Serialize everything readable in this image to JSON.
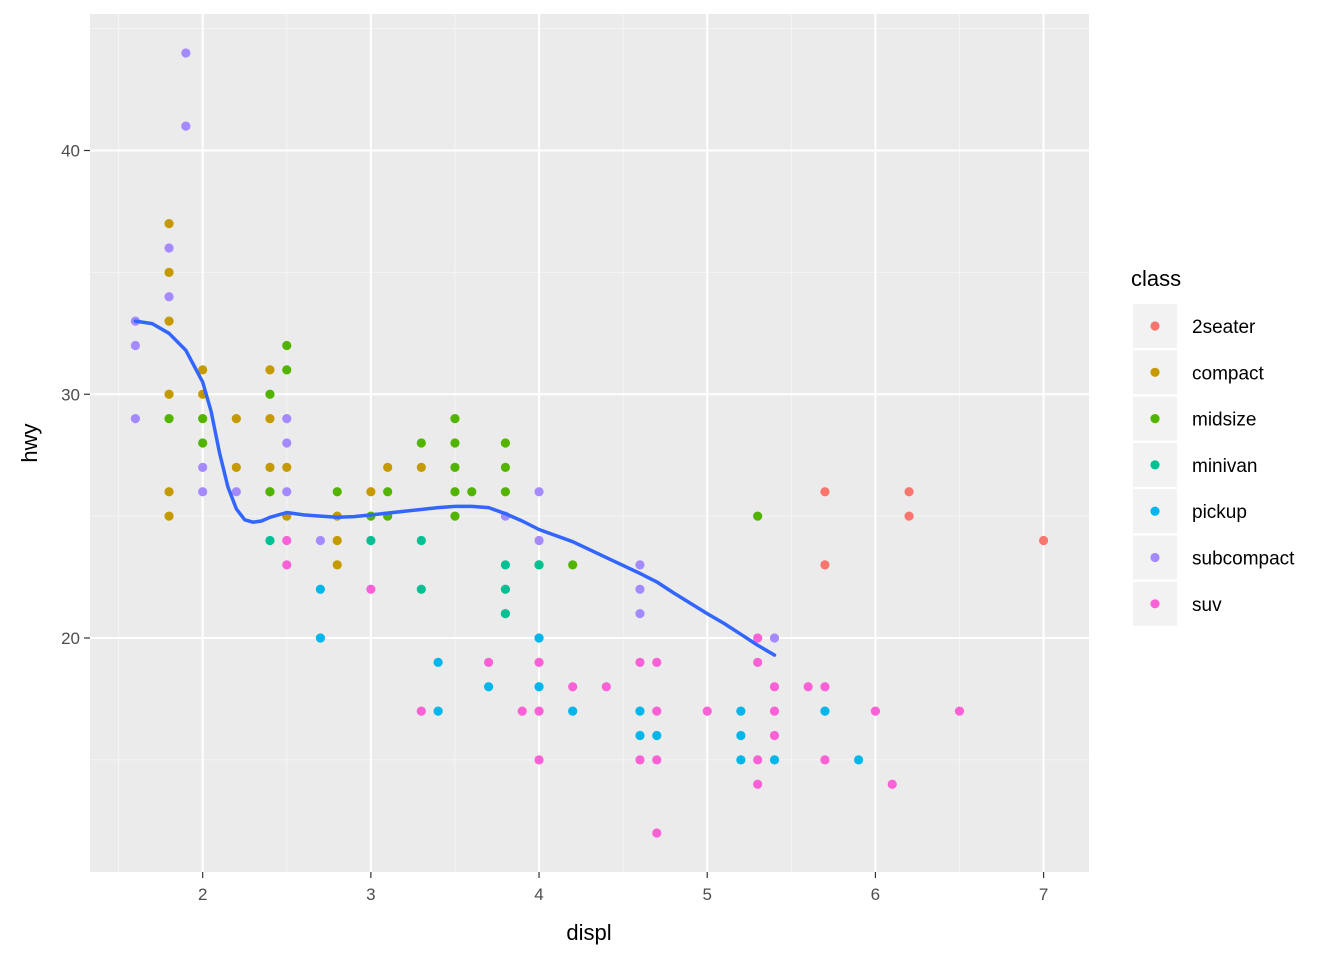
{
  "chart_data": {
    "type": "scatter",
    "xlabel": "displ",
    "ylabel": "hwy",
    "xlim": [
      1.33,
      7.27
    ],
    "ylim": [
      10.4,
      45.6
    ],
    "x_ticks": [
      2,
      3,
      4,
      5,
      6,
      7
    ],
    "x_tick_labels": [
      "2",
      "3",
      "4",
      "5",
      "6",
      "7"
    ],
    "y_ticks": [
      20,
      30,
      40
    ],
    "y_tick_labels": [
      "20",
      "30",
      "40"
    ],
    "grid": true,
    "legend_position": "right",
    "legend": {
      "title": "class",
      "entries": [
        {
          "name": "2seater",
          "color": "#F8766D"
        },
        {
          "name": "compact",
          "color": "#C49A00"
        },
        {
          "name": "midsize",
          "color": "#53B400"
        },
        {
          "name": "minivan",
          "color": "#00C094"
        },
        {
          "name": "pickup",
          "color": "#00B6EB"
        },
        {
          "name": "subcompact",
          "color": "#A58AFF"
        },
        {
          "name": "suv",
          "color": "#FB61D7"
        }
      ]
    },
    "series": [
      {
        "name": "2seater",
        "points": [
          [
            5.7,
            26
          ],
          [
            5.7,
            23
          ],
          [
            6.2,
            26
          ],
          [
            6.2,
            25
          ],
          [
            7.0,
            24
          ]
        ]
      },
      {
        "name": "compact",
        "points": [
          [
            1.8,
            37
          ],
          [
            1.8,
            35
          ],
          [
            1.8,
            33
          ],
          [
            1.8,
            30
          ],
          [
            1.8,
            26
          ],
          [
            1.8,
            25
          ],
          [
            2.0,
            31
          ],
          [
            2.0,
            30
          ],
          [
            2.2,
            29
          ],
          [
            2.2,
            27
          ],
          [
            2.4,
            31
          ],
          [
            2.4,
            29
          ],
          [
            2.4,
            27
          ],
          [
            2.4,
            26
          ],
          [
            2.5,
            27
          ],
          [
            2.5,
            25
          ],
          [
            2.8,
            25
          ],
          [
            2.8,
            24
          ],
          [
            2.8,
            23
          ],
          [
            3.0,
            26
          ],
          [
            3.1,
            27
          ],
          [
            3.3,
            27
          ]
        ]
      },
      {
        "name": "midsize",
        "points": [
          [
            1.8,
            29
          ],
          [
            2.0,
            29
          ],
          [
            2.0,
            28
          ],
          [
            2.4,
            30
          ],
          [
            2.4,
            26
          ],
          [
            2.5,
            32
          ],
          [
            2.5,
            31
          ],
          [
            2.8,
            26
          ],
          [
            3.0,
            25
          ],
          [
            3.1,
            26
          ],
          [
            3.1,
            25
          ],
          [
            3.3,
            28
          ],
          [
            3.5,
            29
          ],
          [
            3.5,
            28
          ],
          [
            3.5,
            27
          ],
          [
            3.5,
            26
          ],
          [
            3.5,
            25
          ],
          [
            3.6,
            26
          ],
          [
            3.8,
            28
          ],
          [
            3.8,
            27
          ],
          [
            3.8,
            26
          ],
          [
            4.0,
            23
          ],
          [
            4.2,
            23
          ],
          [
            5.3,
            25
          ]
        ]
      },
      {
        "name": "minivan",
        "points": [
          [
            2.4,
            24
          ],
          [
            3.0,
            24
          ],
          [
            3.3,
            24
          ],
          [
            3.3,
            22
          ],
          [
            3.8,
            23
          ],
          [
            3.8,
            22
          ],
          [
            3.8,
            21
          ],
          [
            4.0,
            23
          ]
        ]
      },
      {
        "name": "pickup",
        "points": [
          [
            2.7,
            22
          ],
          [
            2.7,
            20
          ],
          [
            3.4,
            19
          ],
          [
            3.4,
            17
          ],
          [
            3.7,
            18
          ],
          [
            4.0,
            20
          ],
          [
            4.0,
            18
          ],
          [
            4.2,
            17
          ],
          [
            4.6,
            17
          ],
          [
            4.6,
            16
          ],
          [
            4.7,
            16
          ],
          [
            5.2,
            17
          ],
          [
            5.2,
            16
          ],
          [
            5.2,
            15
          ],
          [
            5.4,
            15
          ],
          [
            5.7,
            17
          ],
          [
            5.9,
            15
          ]
        ]
      },
      {
        "name": "subcompact",
        "points": [
          [
            1.6,
            33
          ],
          [
            1.6,
            32
          ],
          [
            1.6,
            29
          ],
          [
            1.8,
            36
          ],
          [
            1.8,
            34
          ],
          [
            1.9,
            44
          ],
          [
            1.9,
            41
          ],
          [
            2.0,
            27
          ],
          [
            2.0,
            26
          ],
          [
            2.2,
            26
          ],
          [
            2.5,
            29
          ],
          [
            2.5,
            28
          ],
          [
            2.5,
            26
          ],
          [
            2.7,
            24
          ],
          [
            3.8,
            25
          ],
          [
            4.0,
            26
          ],
          [
            4.0,
            24
          ],
          [
            4.6,
            23
          ],
          [
            4.6,
            22
          ],
          [
            4.6,
            21
          ],
          [
            5.4,
            20
          ]
        ]
      },
      {
        "name": "suv",
        "points": [
          [
            2.5,
            24
          ],
          [
            2.5,
            23
          ],
          [
            3.0,
            22
          ],
          [
            3.3,
            17
          ],
          [
            3.7,
            19
          ],
          [
            3.9,
            17
          ],
          [
            4.0,
            19
          ],
          [
            4.0,
            17
          ],
          [
            4.0,
            15
          ],
          [
            4.2,
            18
          ],
          [
            4.4,
            18
          ],
          [
            4.6,
            19
          ],
          [
            4.6,
            15
          ],
          [
            4.7,
            19
          ],
          [
            4.7,
            17
          ],
          [
            4.7,
            15
          ],
          [
            4.7,
            12
          ],
          [
            5.0,
            17
          ],
          [
            5.3,
            20
          ],
          [
            5.3,
            19
          ],
          [
            5.3,
            15
          ],
          [
            5.3,
            14
          ],
          [
            5.4,
            18
          ],
          [
            5.4,
            17
          ],
          [
            5.4,
            16
          ],
          [
            5.6,
            18
          ],
          [
            5.7,
            18
          ],
          [
            5.7,
            15
          ],
          [
            6.0,
            17
          ],
          [
            6.1,
            14
          ],
          [
            6.5,
            17
          ]
        ]
      }
    ],
    "smooth": {
      "name": "loess",
      "color": "#3366FF",
      "points": [
        [
          1.6,
          33.0
        ],
        [
          1.7,
          32.9
        ],
        [
          1.8,
          32.5
        ],
        [
          1.9,
          31.8
        ],
        [
          2.0,
          30.5
        ],
        [
          2.05,
          29.3
        ],
        [
          2.1,
          27.6
        ],
        [
          2.15,
          26.2
        ],
        [
          2.2,
          25.3
        ],
        [
          2.25,
          24.85
        ],
        [
          2.3,
          24.75
        ],
        [
          2.35,
          24.8
        ],
        [
          2.4,
          24.95
        ],
        [
          2.5,
          25.15
        ],
        [
          2.6,
          25.05
        ],
        [
          2.7,
          25.0
        ],
        [
          2.8,
          24.95
        ],
        [
          2.9,
          24.98
        ],
        [
          3.0,
          25.05
        ],
        [
          3.2,
          25.2
        ],
        [
          3.4,
          25.35
        ],
        [
          3.5,
          25.4
        ],
        [
          3.6,
          25.4
        ],
        [
          3.7,
          25.35
        ],
        [
          3.8,
          25.1
        ],
        [
          3.9,
          24.8
        ],
        [
          4.0,
          24.45
        ],
        [
          4.2,
          23.95
        ],
        [
          4.4,
          23.3
        ],
        [
          4.6,
          22.65
        ],
        [
          4.7,
          22.3
        ],
        [
          4.8,
          21.85
        ],
        [
          5.0,
          21.0
        ],
        [
          5.1,
          20.6
        ],
        [
          5.2,
          20.15
        ],
        [
          5.3,
          19.7
        ],
        [
          5.4,
          19.3
        ]
      ]
    }
  }
}
